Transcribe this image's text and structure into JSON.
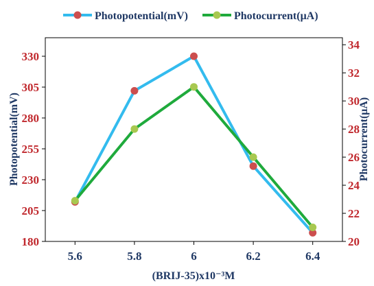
{
  "chart_data": {
    "type": "line",
    "title": "",
    "xlabel": "(BRIJ-35)x10⁻³M",
    "ylabel_left": "Photopotential(mV)",
    "ylabel_right": "Photocurrent(μA)",
    "x": [
      5.6,
      5.8,
      6.0,
      6.2,
      6.4
    ],
    "x_tick_labels": [
      "5.6",
      "5.8",
      "6",
      "6.2",
      "6.4"
    ],
    "xlim": [
      5.5,
      6.5
    ],
    "ylim_left": [
      180,
      345
    ],
    "ylim_right": [
      20,
      34.5
    ],
    "y_ticks_left": [
      180,
      205,
      230,
      255,
      280,
      305,
      330
    ],
    "y_ticks_right": [
      20,
      22,
      24,
      26,
      28,
      30,
      32,
      34
    ],
    "grid": false,
    "legend_position": "top",
    "series": [
      {
        "name": "Photopotential(mV)",
        "axis": "left",
        "values": [
          212,
          302,
          330,
          241,
          187
        ],
        "line_color": "#33bbee",
        "marker_color": "#cc4e4e"
      },
      {
        "name": "Photocurrent(μA)",
        "axis": "right",
        "values": [
          22.9,
          28,
          31,
          26,
          21
        ],
        "line_color": "#1faa3c",
        "marker_color": "#a8c850"
      }
    ]
  }
}
